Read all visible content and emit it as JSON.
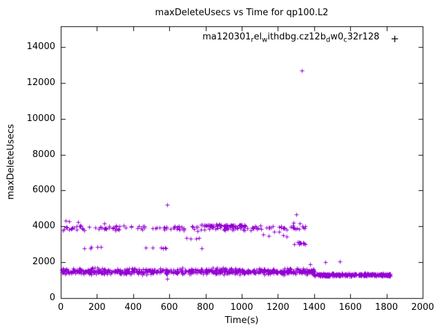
{
  "chart": {
    "title": "maxDeleteUsecs vs Time for qp100.L2",
    "xlabel": "Time(s)",
    "ylabel": "maxDeleteUsecs",
    "legend": {
      "segments": [
        {
          "text": "ma120301"
        },
        {
          "sub": "r"
        },
        {
          "text": "el"
        },
        {
          "sub": "w"
        },
        {
          "text": "ithdbg.cz12b"
        },
        {
          "sub": "d"
        },
        {
          "text": "w0"
        },
        {
          "sub": "c"
        },
        {
          "text": "32r128"
        }
      ],
      "marker": "+"
    }
  },
  "chart_data": {
    "type": "scatter",
    "title": "maxDeleteUsecs vs Time for qp100.L2",
    "xlabel": "Time(s)",
    "ylabel": "maxDeleteUsecs",
    "series_name": "ma120301_rel_withdbg.cz12b_dw0_c32r128",
    "marker": "plus",
    "color": "#9400d3",
    "xlim": [
      0,
      2000
    ],
    "ylim": [
      0,
      15160
    ],
    "xticks": [
      0,
      200,
      400,
      600,
      800,
      1000,
      1200,
      1400,
      1600,
      1800,
      2000
    ],
    "yticks": [
      0,
      2000,
      4000,
      6000,
      8000,
      10000,
      12000,
      14000
    ],
    "grid": false,
    "legend_position": "top-right-inside",
    "bands": [
      {
        "name": "lower-band-wide",
        "x": [
          3,
          1400
        ],
        "y_center": 1500,
        "y_spread": 210,
        "count": 480
      },
      {
        "name": "lower-band-core",
        "x": [
          3,
          1400
        ],
        "y_center": 1480,
        "y_spread": 60,
        "count": 160
      },
      {
        "name": "lower-band-tail",
        "x": [
          1400,
          1820
        ],
        "y_center": 1300,
        "y_spread": 90,
        "count": 300
      },
      {
        "name": "upper-band",
        "x": [
          5,
          1360
        ],
        "y_center": 3920,
        "y_spread": 190,
        "count": 150
      },
      {
        "name": "upper-band-arch",
        "x": [
          780,
          1030
        ],
        "y_center": 4050,
        "y_spread": 90,
        "count": 55
      },
      {
        "name": "mid-sparse-2800",
        "x": [
          30,
          780
        ],
        "y_center": 2810,
        "y_spread": 80,
        "count": 13
      },
      {
        "name": "descent-cluster",
        "x": [
          1290,
          1355
        ],
        "y_center": 3060,
        "y_spread": 130,
        "count": 12
      }
    ],
    "outliers": [
      [
        588,
        5210
      ],
      [
        1332,
        12680
      ],
      [
        1302,
        4660
      ],
      [
        1288,
        4200
      ],
      [
        1322,
        4150
      ],
      [
        25,
        4330
      ],
      [
        45,
        4290
      ],
      [
        95,
        4230
      ],
      [
        240,
        4180
      ],
      [
        1120,
        3560
      ],
      [
        1150,
        3480
      ],
      [
        1180,
        3700
      ],
      [
        1205,
        3700
      ],
      [
        1228,
        3500
      ],
      [
        1248,
        3430
      ],
      [
        1352,
        2990
      ],
      [
        695,
        3360
      ],
      [
        716,
        3320
      ],
      [
        748,
        3300
      ],
      [
        764,
        3340
      ],
      [
        588,
        1080
      ],
      [
        1542,
        2050
      ],
      [
        1460,
        1990
      ],
      [
        1378,
        1900
      ]
    ]
  }
}
